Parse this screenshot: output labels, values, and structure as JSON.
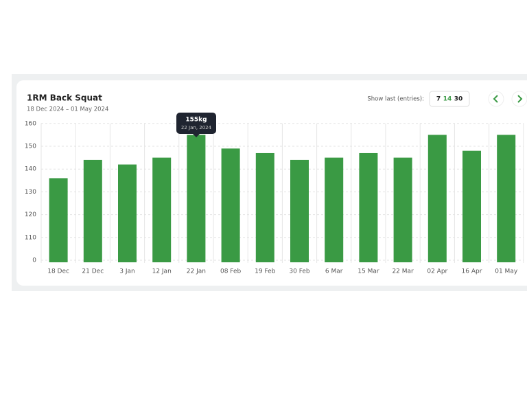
{
  "chart_data": {
    "type": "bar",
    "title": "1RM Back Squat",
    "subtitle": "18 Dec 2024 – 01 May 2024",
    "categories": [
      "18 Dec",
      "21 Dec",
      "3 Jan",
      "12 Jan",
      "22 Jan",
      "08 Feb",
      "19 Feb",
      "30 Feb",
      "6 Mar",
      "15 Mar",
      "22 Mar",
      "02 Apr",
      "16 Apr",
      "01 May"
    ],
    "values": [
      136,
      144,
      142,
      145,
      155,
      149,
      147,
      144,
      145,
      147,
      145,
      155,
      148,
      155
    ],
    "color": "#3a9a44",
    "ylim": [
      0,
      160
    ],
    "yticks": [
      0,
      110,
      120,
      130,
      140,
      150,
      160
    ],
    "grid": true,
    "tooltip": {
      "label": "155kg",
      "date": "22 Jan, 2024"
    }
  },
  "controls": {
    "show_last_label": "Show last (entries):",
    "options": [
      7,
      14,
      30
    ]
  }
}
